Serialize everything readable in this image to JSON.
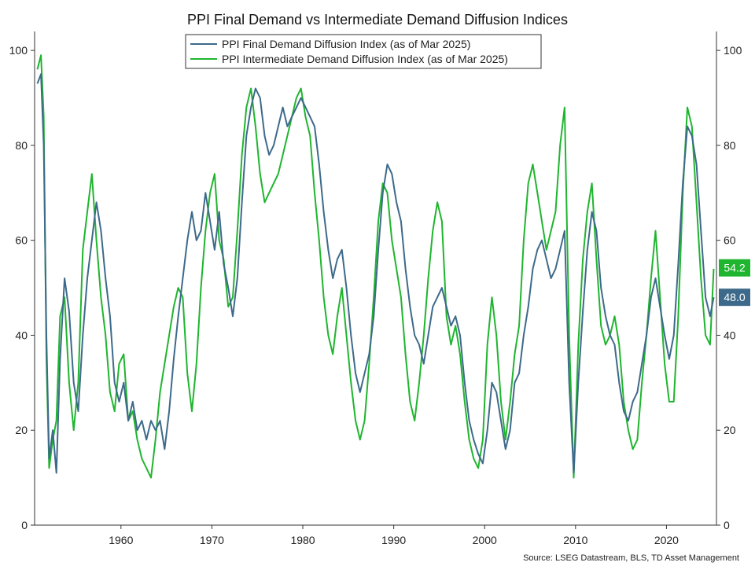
{
  "chart_data": {
    "type": "line",
    "title": "PPI Final Demand vs Intermediate Demand Diffusion Indices",
    "source": "Source: LSEG Datastream, BLS, TD Asset Management",
    "xlim": [
      1950.5,
      2025.5
    ],
    "ylim": [
      0,
      104
    ],
    "y_ticks": [
      0,
      20,
      40,
      60,
      80,
      100
    ],
    "x_ticks": [
      1960,
      1970,
      1980,
      1990,
      2000,
      2010,
      2020
    ],
    "legend_position": "top-center",
    "grid": false,
    "series": [
      {
        "name": "PPI Final Demand Diffusion Index (as of Mar 2025)",
        "color": "#3d6a8a",
        "last_label": "48.0",
        "points": [
          [
            1950.8,
            93
          ],
          [
            1951.2,
            95
          ],
          [
            1951.5,
            80
          ],
          [
            1951.8,
            40
          ],
          [
            1952.1,
            14
          ],
          [
            1952.5,
            20
          ],
          [
            1952.9,
            11
          ],
          [
            1953.3,
            35
          ],
          [
            1953.8,
            52
          ],
          [
            1954.3,
            45
          ],
          [
            1954.8,
            30
          ],
          [
            1955.3,
            24
          ],
          [
            1955.8,
            40
          ],
          [
            1956.3,
            52
          ],
          [
            1956.8,
            60
          ],
          [
            1957.3,
            68
          ],
          [
            1957.8,
            62
          ],
          [
            1958.3,
            52
          ],
          [
            1958.8,
            44
          ],
          [
            1959.3,
            30
          ],
          [
            1959.8,
            26
          ],
          [
            1960.3,
            30
          ],
          [
            1960.8,
            22
          ],
          [
            1961.3,
            26
          ],
          [
            1961.8,
            20
          ],
          [
            1962.3,
            22
          ],
          [
            1962.8,
            18
          ],
          [
            1963.3,
            22
          ],
          [
            1963.8,
            20
          ],
          [
            1964.3,
            22
          ],
          [
            1964.8,
            16
          ],
          [
            1965.3,
            24
          ],
          [
            1965.8,
            35
          ],
          [
            1966.3,
            44
          ],
          [
            1966.8,
            52
          ],
          [
            1967.3,
            60
          ],
          [
            1967.8,
            66
          ],
          [
            1968.3,
            60
          ],
          [
            1968.8,
            62
          ],
          [
            1969.3,
            70
          ],
          [
            1969.8,
            64
          ],
          [
            1970.3,
            58
          ],
          [
            1970.8,
            66
          ],
          [
            1971.3,
            55
          ],
          [
            1971.8,
            50
          ],
          [
            1972.3,
            44
          ],
          [
            1972.8,
            52
          ],
          [
            1973.3,
            68
          ],
          [
            1973.8,
            82
          ],
          [
            1974.3,
            88
          ],
          [
            1974.8,
            92
          ],
          [
            1975.3,
            90
          ],
          [
            1975.8,
            82
          ],
          [
            1976.3,
            78
          ],
          [
            1976.8,
            80
          ],
          [
            1977.3,
            84
          ],
          [
            1977.8,
            88
          ],
          [
            1978.3,
            84
          ],
          [
            1978.8,
            86
          ],
          [
            1979.3,
            88
          ],
          [
            1979.8,
            90
          ],
          [
            1980.3,
            88
          ],
          [
            1980.8,
            86
          ],
          [
            1981.3,
            84
          ],
          [
            1981.8,
            76
          ],
          [
            1982.3,
            66
          ],
          [
            1982.8,
            58
          ],
          [
            1983.3,
            52
          ],
          [
            1983.8,
            56
          ],
          [
            1984.3,
            58
          ],
          [
            1984.8,
            50
          ],
          [
            1985.3,
            40
          ],
          [
            1985.8,
            32
          ],
          [
            1986.3,
            28
          ],
          [
            1986.8,
            32
          ],
          [
            1987.3,
            36
          ],
          [
            1987.8,
            44
          ],
          [
            1988.3,
            58
          ],
          [
            1988.8,
            70
          ],
          [
            1989.3,
            76
          ],
          [
            1989.8,
            74
          ],
          [
            1990.3,
            68
          ],
          [
            1990.8,
            64
          ],
          [
            1991.3,
            54
          ],
          [
            1991.8,
            46
          ],
          [
            1992.3,
            40
          ],
          [
            1992.8,
            38
          ],
          [
            1993.3,
            34
          ],
          [
            1993.8,
            40
          ],
          [
            1994.3,
            46
          ],
          [
            1994.8,
            48
          ],
          [
            1995.3,
            50
          ],
          [
            1995.8,
            46
          ],
          [
            1996.3,
            42
          ],
          [
            1996.8,
            44
          ],
          [
            1997.3,
            40
          ],
          [
            1997.8,
            30
          ],
          [
            1998.3,
            22
          ],
          [
            1998.8,
            18
          ],
          [
            1999.3,
            15
          ],
          [
            1999.8,
            13
          ],
          [
            2000.3,
            20
          ],
          [
            2000.8,
            30
          ],
          [
            2001.3,
            28
          ],
          [
            2001.8,
            22
          ],
          [
            2002.3,
            16
          ],
          [
            2002.8,
            20
          ],
          [
            2003.3,
            30
          ],
          [
            2003.8,
            32
          ],
          [
            2004.3,
            40
          ],
          [
            2004.8,
            46
          ],
          [
            2005.3,
            54
          ],
          [
            2005.8,
            58
          ],
          [
            2006.3,
            60
          ],
          [
            2006.8,
            56
          ],
          [
            2007.3,
            52
          ],
          [
            2007.8,
            54
          ],
          [
            2008.3,
            58
          ],
          [
            2008.8,
            62
          ],
          [
            2009.3,
            30
          ],
          [
            2009.8,
            11
          ],
          [
            2010.3,
            30
          ],
          [
            2010.8,
            45
          ],
          [
            2011.3,
            58
          ],
          [
            2011.8,
            66
          ],
          [
            2012.3,
            62
          ],
          [
            2012.8,
            50
          ],
          [
            2013.3,
            44
          ],
          [
            2013.8,
            40
          ],
          [
            2014.3,
            38
          ],
          [
            2014.8,
            30
          ],
          [
            2015.3,
            24
          ],
          [
            2015.8,
            22
          ],
          [
            2016.3,
            26
          ],
          [
            2016.8,
            28
          ],
          [
            2017.3,
            34
          ],
          [
            2017.8,
            40
          ],
          [
            2018.3,
            48
          ],
          [
            2018.8,
            52
          ],
          [
            2019.3,
            46
          ],
          [
            2019.8,
            40
          ],
          [
            2020.3,
            35
          ],
          [
            2020.8,
            40
          ],
          [
            2021.3,
            55
          ],
          [
            2021.8,
            72
          ],
          [
            2022.3,
            84
          ],
          [
            2022.8,
            82
          ],
          [
            2023.3,
            76
          ],
          [
            2023.8,
            62
          ],
          [
            2024.3,
            48
          ],
          [
            2024.8,
            44
          ],
          [
            2025.2,
            48
          ]
        ]
      },
      {
        "name": "PPI Intermediate Demand Diffusion Index (as of Mar 2025)",
        "color": "#1fb52e",
        "last_label": "54.2",
        "points": [
          [
            1950.8,
            96
          ],
          [
            1951.2,
            99
          ],
          [
            1951.5,
            86
          ],
          [
            1951.8,
            35
          ],
          [
            1952.1,
            12
          ],
          [
            1952.5,
            18
          ],
          [
            1952.9,
            22
          ],
          [
            1953.3,
            44
          ],
          [
            1953.8,
            48
          ],
          [
            1954.3,
            30
          ],
          [
            1954.8,
            20
          ],
          [
            1955.3,
            30
          ],
          [
            1955.8,
            58
          ],
          [
            1956.3,
            66
          ],
          [
            1956.8,
            74
          ],
          [
            1957.3,
            60
          ],
          [
            1957.8,
            48
          ],
          [
            1958.3,
            40
          ],
          [
            1958.8,
            28
          ],
          [
            1959.3,
            24
          ],
          [
            1959.8,
            34
          ],
          [
            1960.3,
            36
          ],
          [
            1960.8,
            22
          ],
          [
            1961.3,
            24
          ],
          [
            1961.8,
            18
          ],
          [
            1962.3,
            14
          ],
          [
            1962.8,
            12
          ],
          [
            1963.3,
            10
          ],
          [
            1963.8,
            18
          ],
          [
            1964.3,
            28
          ],
          [
            1964.8,
            34
          ],
          [
            1965.3,
            40
          ],
          [
            1965.8,
            46
          ],
          [
            1966.3,
            50
          ],
          [
            1966.8,
            48
          ],
          [
            1967.3,
            32
          ],
          [
            1967.8,
            24
          ],
          [
            1968.3,
            34
          ],
          [
            1968.8,
            50
          ],
          [
            1969.3,
            62
          ],
          [
            1969.8,
            70
          ],
          [
            1970.3,
            74
          ],
          [
            1970.8,
            60
          ],
          [
            1971.3,
            56
          ],
          [
            1971.8,
            46
          ],
          [
            1972.3,
            48
          ],
          [
            1972.8,
            62
          ],
          [
            1973.3,
            78
          ],
          [
            1973.8,
            88
          ],
          [
            1974.3,
            92
          ],
          [
            1974.8,
            84
          ],
          [
            1975.3,
            74
          ],
          [
            1975.8,
            68
          ],
          [
            1976.3,
            70
          ],
          [
            1976.8,
            72
          ],
          [
            1977.3,
            74
          ],
          [
            1977.8,
            78
          ],
          [
            1978.3,
            82
          ],
          [
            1978.8,
            86
          ],
          [
            1979.3,
            90
          ],
          [
            1979.8,
            92
          ],
          [
            1980.3,
            86
          ],
          [
            1980.8,
            82
          ],
          [
            1981.3,
            70
          ],
          [
            1981.8,
            60
          ],
          [
            1982.3,
            48
          ],
          [
            1982.8,
            40
          ],
          [
            1983.3,
            36
          ],
          [
            1983.8,
            44
          ],
          [
            1984.3,
            50
          ],
          [
            1984.8,
            40
          ],
          [
            1985.3,
            30
          ],
          [
            1985.8,
            22
          ],
          [
            1986.3,
            18
          ],
          [
            1986.8,
            22
          ],
          [
            1987.3,
            34
          ],
          [
            1987.8,
            48
          ],
          [
            1988.3,
            64
          ],
          [
            1988.8,
            72
          ],
          [
            1989.3,
            70
          ],
          [
            1989.8,
            60
          ],
          [
            1990.3,
            54
          ],
          [
            1990.8,
            48
          ],
          [
            1991.3,
            36
          ],
          [
            1991.8,
            26
          ],
          [
            1992.3,
            22
          ],
          [
            1992.8,
            30
          ],
          [
            1993.3,
            40
          ],
          [
            1993.8,
            52
          ],
          [
            1994.3,
            62
          ],
          [
            1994.8,
            68
          ],
          [
            1995.3,
            64
          ],
          [
            1995.8,
            44
          ],
          [
            1996.3,
            38
          ],
          [
            1996.8,
            42
          ],
          [
            1997.3,
            36
          ],
          [
            1997.8,
            26
          ],
          [
            1998.3,
            18
          ],
          [
            1998.8,
            14
          ],
          [
            1999.3,
            12
          ],
          [
            1999.8,
            18
          ],
          [
            2000.3,
            38
          ],
          [
            2000.8,
            48
          ],
          [
            2001.3,
            40
          ],
          [
            2001.8,
            26
          ],
          [
            2002.3,
            18
          ],
          [
            2002.8,
            26
          ],
          [
            2003.3,
            36
          ],
          [
            2003.8,
            42
          ],
          [
            2004.3,
            60
          ],
          [
            2004.8,
            72
          ],
          [
            2005.3,
            76
          ],
          [
            2005.8,
            70
          ],
          [
            2006.3,
            64
          ],
          [
            2006.8,
            58
          ],
          [
            2007.3,
            62
          ],
          [
            2007.8,
            66
          ],
          [
            2008.3,
            80
          ],
          [
            2008.8,
            88
          ],
          [
            2009.3,
            40
          ],
          [
            2009.8,
            10
          ],
          [
            2010.3,
            38
          ],
          [
            2010.8,
            56
          ],
          [
            2011.3,
            66
          ],
          [
            2011.8,
            72
          ],
          [
            2012.3,
            56
          ],
          [
            2012.8,
            42
          ],
          [
            2013.3,
            38
          ],
          [
            2013.8,
            40
          ],
          [
            2014.3,
            44
          ],
          [
            2014.8,
            38
          ],
          [
            2015.3,
            26
          ],
          [
            2015.8,
            20
          ],
          [
            2016.3,
            16
          ],
          [
            2016.8,
            18
          ],
          [
            2017.3,
            30
          ],
          [
            2017.8,
            40
          ],
          [
            2018.3,
            52
          ],
          [
            2018.8,
            62
          ],
          [
            2019.3,
            48
          ],
          [
            2019.8,
            34
          ],
          [
            2020.3,
            26
          ],
          [
            2020.8,
            26
          ],
          [
            2021.3,
            44
          ],
          [
            2021.8,
            70
          ],
          [
            2022.3,
            88
          ],
          [
            2022.8,
            84
          ],
          [
            2023.3,
            68
          ],
          [
            2023.8,
            52
          ],
          [
            2024.3,
            40
          ],
          [
            2024.8,
            38
          ],
          [
            2025.2,
            54
          ]
        ]
      }
    ]
  }
}
